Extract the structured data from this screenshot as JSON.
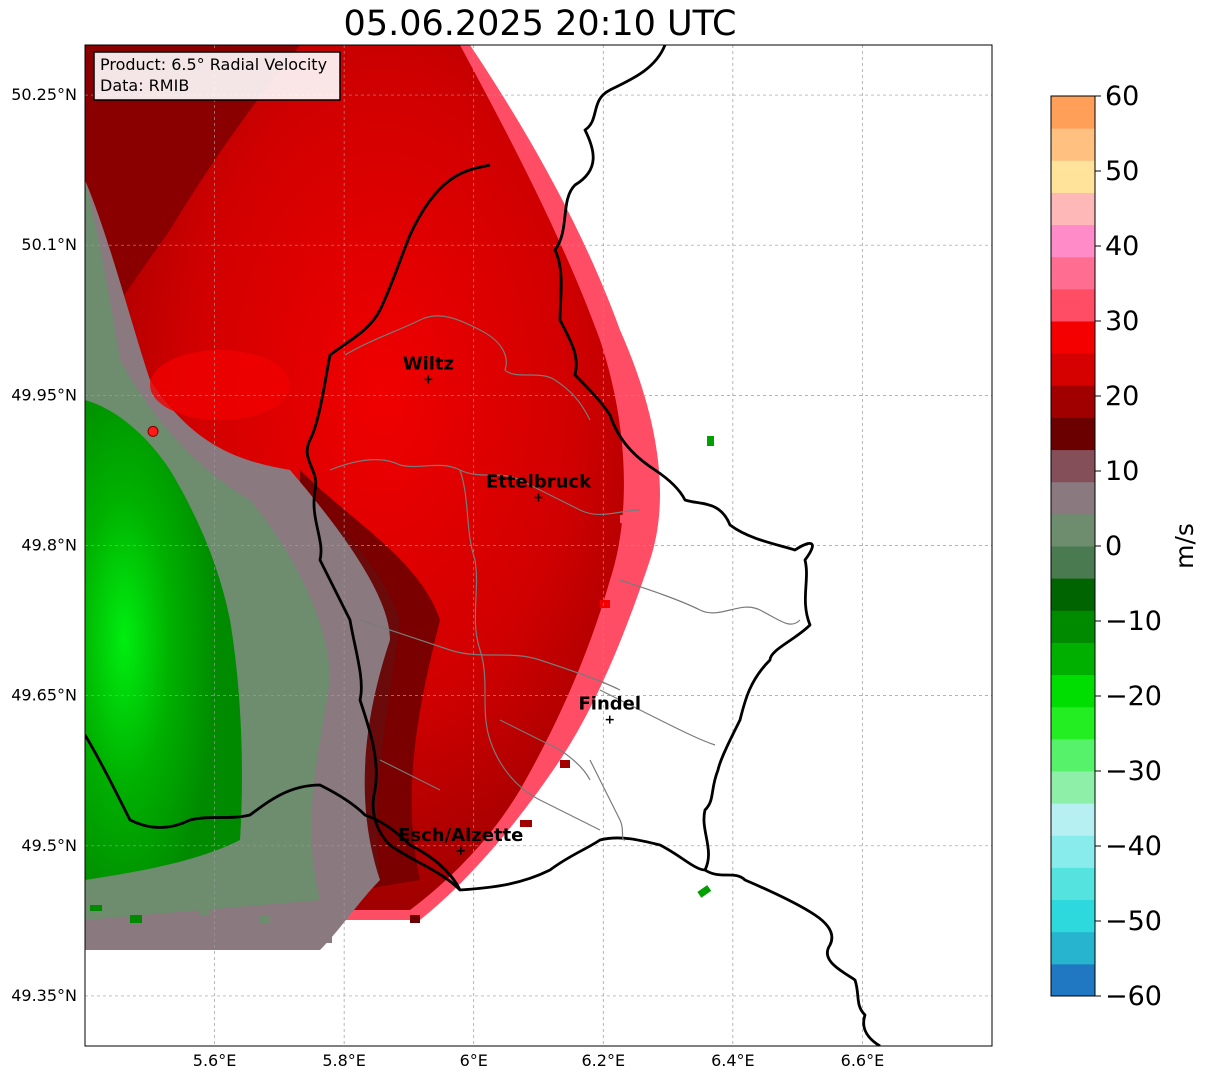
{
  "title": "05.06.2025 20:10 UTC",
  "info_box": {
    "product": "Product: 6.5° Radial Velocity",
    "data": "Data: RMIB"
  },
  "axes": {
    "lat_ticks": [
      "50.25°N",
      "50.1°N",
      "49.95°N",
      "49.8°N",
      "49.65°N",
      "49.5°N",
      "49.35°N"
    ],
    "lon_ticks": [
      "5.6°E",
      "5.8°E",
      "6°E",
      "6.2°E",
      "6.4°E",
      "6.6°E"
    ],
    "lat_range": [
      49.3,
      50.3
    ],
    "lon_range": [
      5.4,
      6.8
    ],
    "grid": true
  },
  "cities": [
    {
      "name": "Wiltz",
      "lon": 5.93,
      "lat": 49.966
    },
    {
      "name": "Ettelbruck",
      "lon": 6.1,
      "lat": 49.848
    },
    {
      "name": "Findel",
      "lon": 6.21,
      "lat": 49.626
    },
    {
      "name": "Esch/Alzette",
      "lon": 5.98,
      "lat": 49.495
    }
  ],
  "colorbar": {
    "label": "m/s",
    "ticks": [
      "60",
      "50",
      "40",
      "30",
      "20",
      "10",
      "0",
      "−10",
      "−20",
      "−30",
      "−40",
      "−50",
      "−60"
    ],
    "range": [
      -60,
      60
    ],
    "colors": [
      "#1f78c1",
      "#26b4cf",
      "#2dd9dc",
      "#55e3e0",
      "#88ecec",
      "#b6f0f2",
      "#8ef0a8",
      "#56f36a",
      "#22ee22",
      "#00dd00",
      "#00b000",
      "#008a00",
      "#006400",
      "#4a7a50",
      "#6e8c6e",
      "#8a7a80",
      "#844f58",
      "#6b0000",
      "#a00000",
      "#d50000",
      "#f40000",
      "#ff4d66",
      "#ff6e90",
      "#ff8cc8",
      "#ffb8b8",
      "#ffe39a",
      "#ffc080",
      "#ff9f58"
    ]
  },
  "radar_site": {
    "lon": 5.505,
    "lat": 49.914,
    "color": "#ff1a1a"
  }
}
